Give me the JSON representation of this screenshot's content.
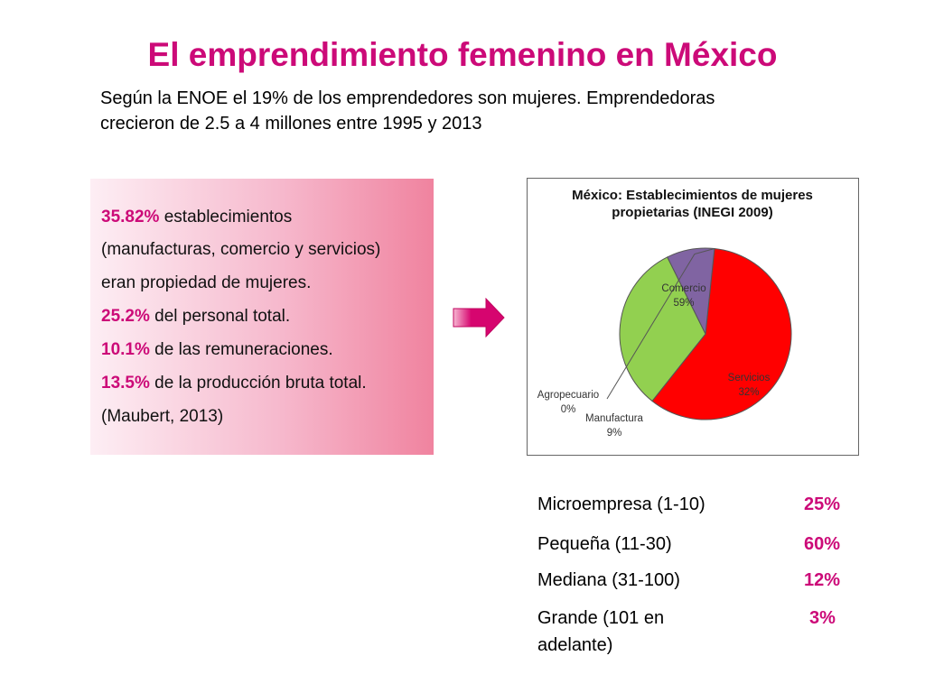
{
  "slide": {
    "title": "El emprendimiento femenino en México",
    "subtitle_line1": "Según la ENOE el 19% de los emprendedores son mujeres. Emprendedoras",
    "subtitle_line2": "crecieron de 2.5 a 4 millones entre 1995 y 2013"
  },
  "facts": {
    "f1_pct": "35.82%",
    "f1_text": "establecimientos",
    "f1_line2": "(manufacturas, comercio y servicios)",
    "f1_line3": "eran propiedad  de mujeres.",
    "f2_pct": "25.2%",
    "f2_text": "del personal total.",
    "f3_pct": "10.1%",
    "f3_text": "de las remuneraciones.",
    "f4_pct": "13.5%",
    "f4_text": "de la producción bruta total.",
    "source": "(Maubert, 2013)"
  },
  "colors": {
    "accent": "#cc0a78",
    "arrow": "#d6056f",
    "comercio": "#ff0000",
    "servicios": "#92d050",
    "manufactura": "#8064a2",
    "agropecuario": "#4f81bd"
  },
  "chart_data": {
    "type": "pie",
    "title_line1": "México: Establecimientos de mujeres",
    "title_line2": "propietarias (INEGI 2009)",
    "series": [
      {
        "name": "Comercio",
        "value": 59,
        "label": "59%"
      },
      {
        "name": "Servicios",
        "value": 32,
        "label": "32%"
      },
      {
        "name": "Manufactura",
        "value": 9,
        "label": "9%"
      },
      {
        "name": "Agropecuario",
        "value": 0,
        "label": "0%"
      }
    ]
  },
  "size_table": {
    "rows": [
      {
        "label": "Microempresa (1-10)",
        "value": "25%"
      },
      {
        "label": "Pequeña (11-30)",
        "value": "60%"
      },
      {
        "label": "Mediana (31-100)",
        "value": "12%"
      },
      {
        "label": "Grande (101 en",
        "label_line2": "adelante)",
        "value": "3%"
      }
    ]
  }
}
